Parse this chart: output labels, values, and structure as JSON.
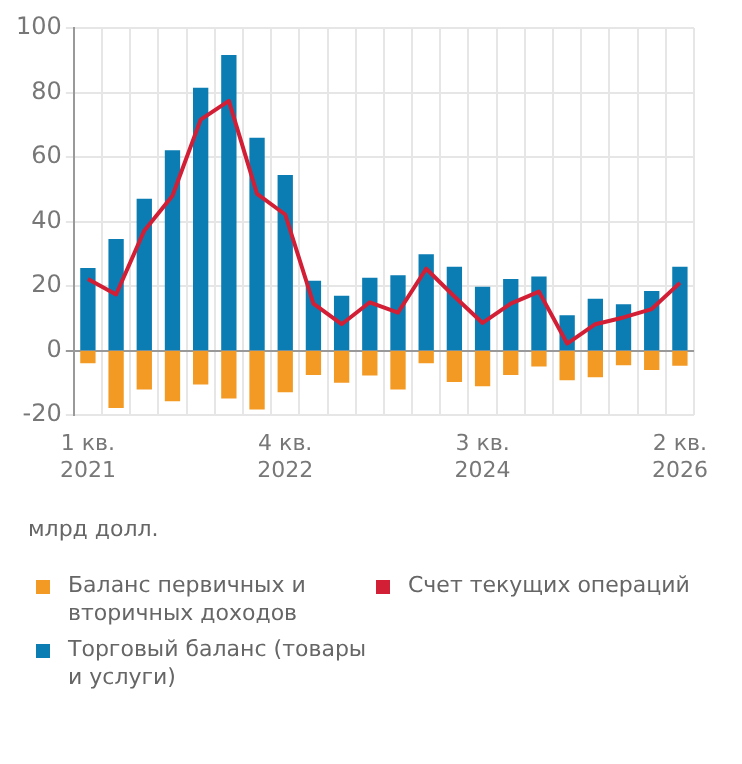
{
  "chart_data": {
    "type": "bar",
    "stacked": true,
    "ylabel": "млрд долл.",
    "categories": [
      "1 кв. 2021",
      null,
      null,
      null,
      null,
      null,
      null,
      "4 кв. 2022",
      null,
      null,
      null,
      null,
      null,
      null,
      "3 кв. 2024",
      null,
      null,
      null,
      null,
      null,
      null,
      "2 кв. 2026"
    ],
    "series": [
      {
        "name": "Баланс первичных и вторичных доходов",
        "color": "#f39a24",
        "values": [
          -3.7,
          -17.6,
          -11.8,
          -15.5,
          -10.3,
          -14.6,
          -18,
          -12.7,
          -7.3,
          -9.7,
          -7.5,
          -11.8,
          -3.7,
          -9.5,
          -10.8,
          -7.3,
          -4.7,
          -9,
          -8,
          -4.3,
          -5.8,
          -4.5
        ]
      },
      {
        "name": "Счет текущих операций",
        "type": "line",
        "color": "#d21f35",
        "values": [
          22.2,
          17.4,
          37.2,
          48,
          71.6,
          77.4,
          48.6,
          42.2,
          14.6,
          8.2,
          15,
          11.8,
          25.4,
          16.8,
          8.6,
          14.6,
          18.3,
          2.2,
          8.2,
          10.3,
          12.9,
          21
        ]
      },
      {
        "name": "Торговый баланс (товары и услуги)",
        "color": "#0b7db3",
        "values": [
          25.4,
          34.4,
          46.9,
          61.9,
          81.3,
          91.4,
          65.8,
          54.2,
          21.5,
          16.8,
          22.4,
          23.2,
          29.7,
          25.8,
          19.6,
          22,
          22.8,
          10.8,
          15.9,
          14.2,
          18.3,
          25.8
        ]
      }
    ],
    "ylim": [
      -20,
      100
    ],
    "yticks": [
      -20,
      0,
      20,
      40,
      60,
      80,
      100
    ],
    "grid": true,
    "legend": "bottom"
  }
}
